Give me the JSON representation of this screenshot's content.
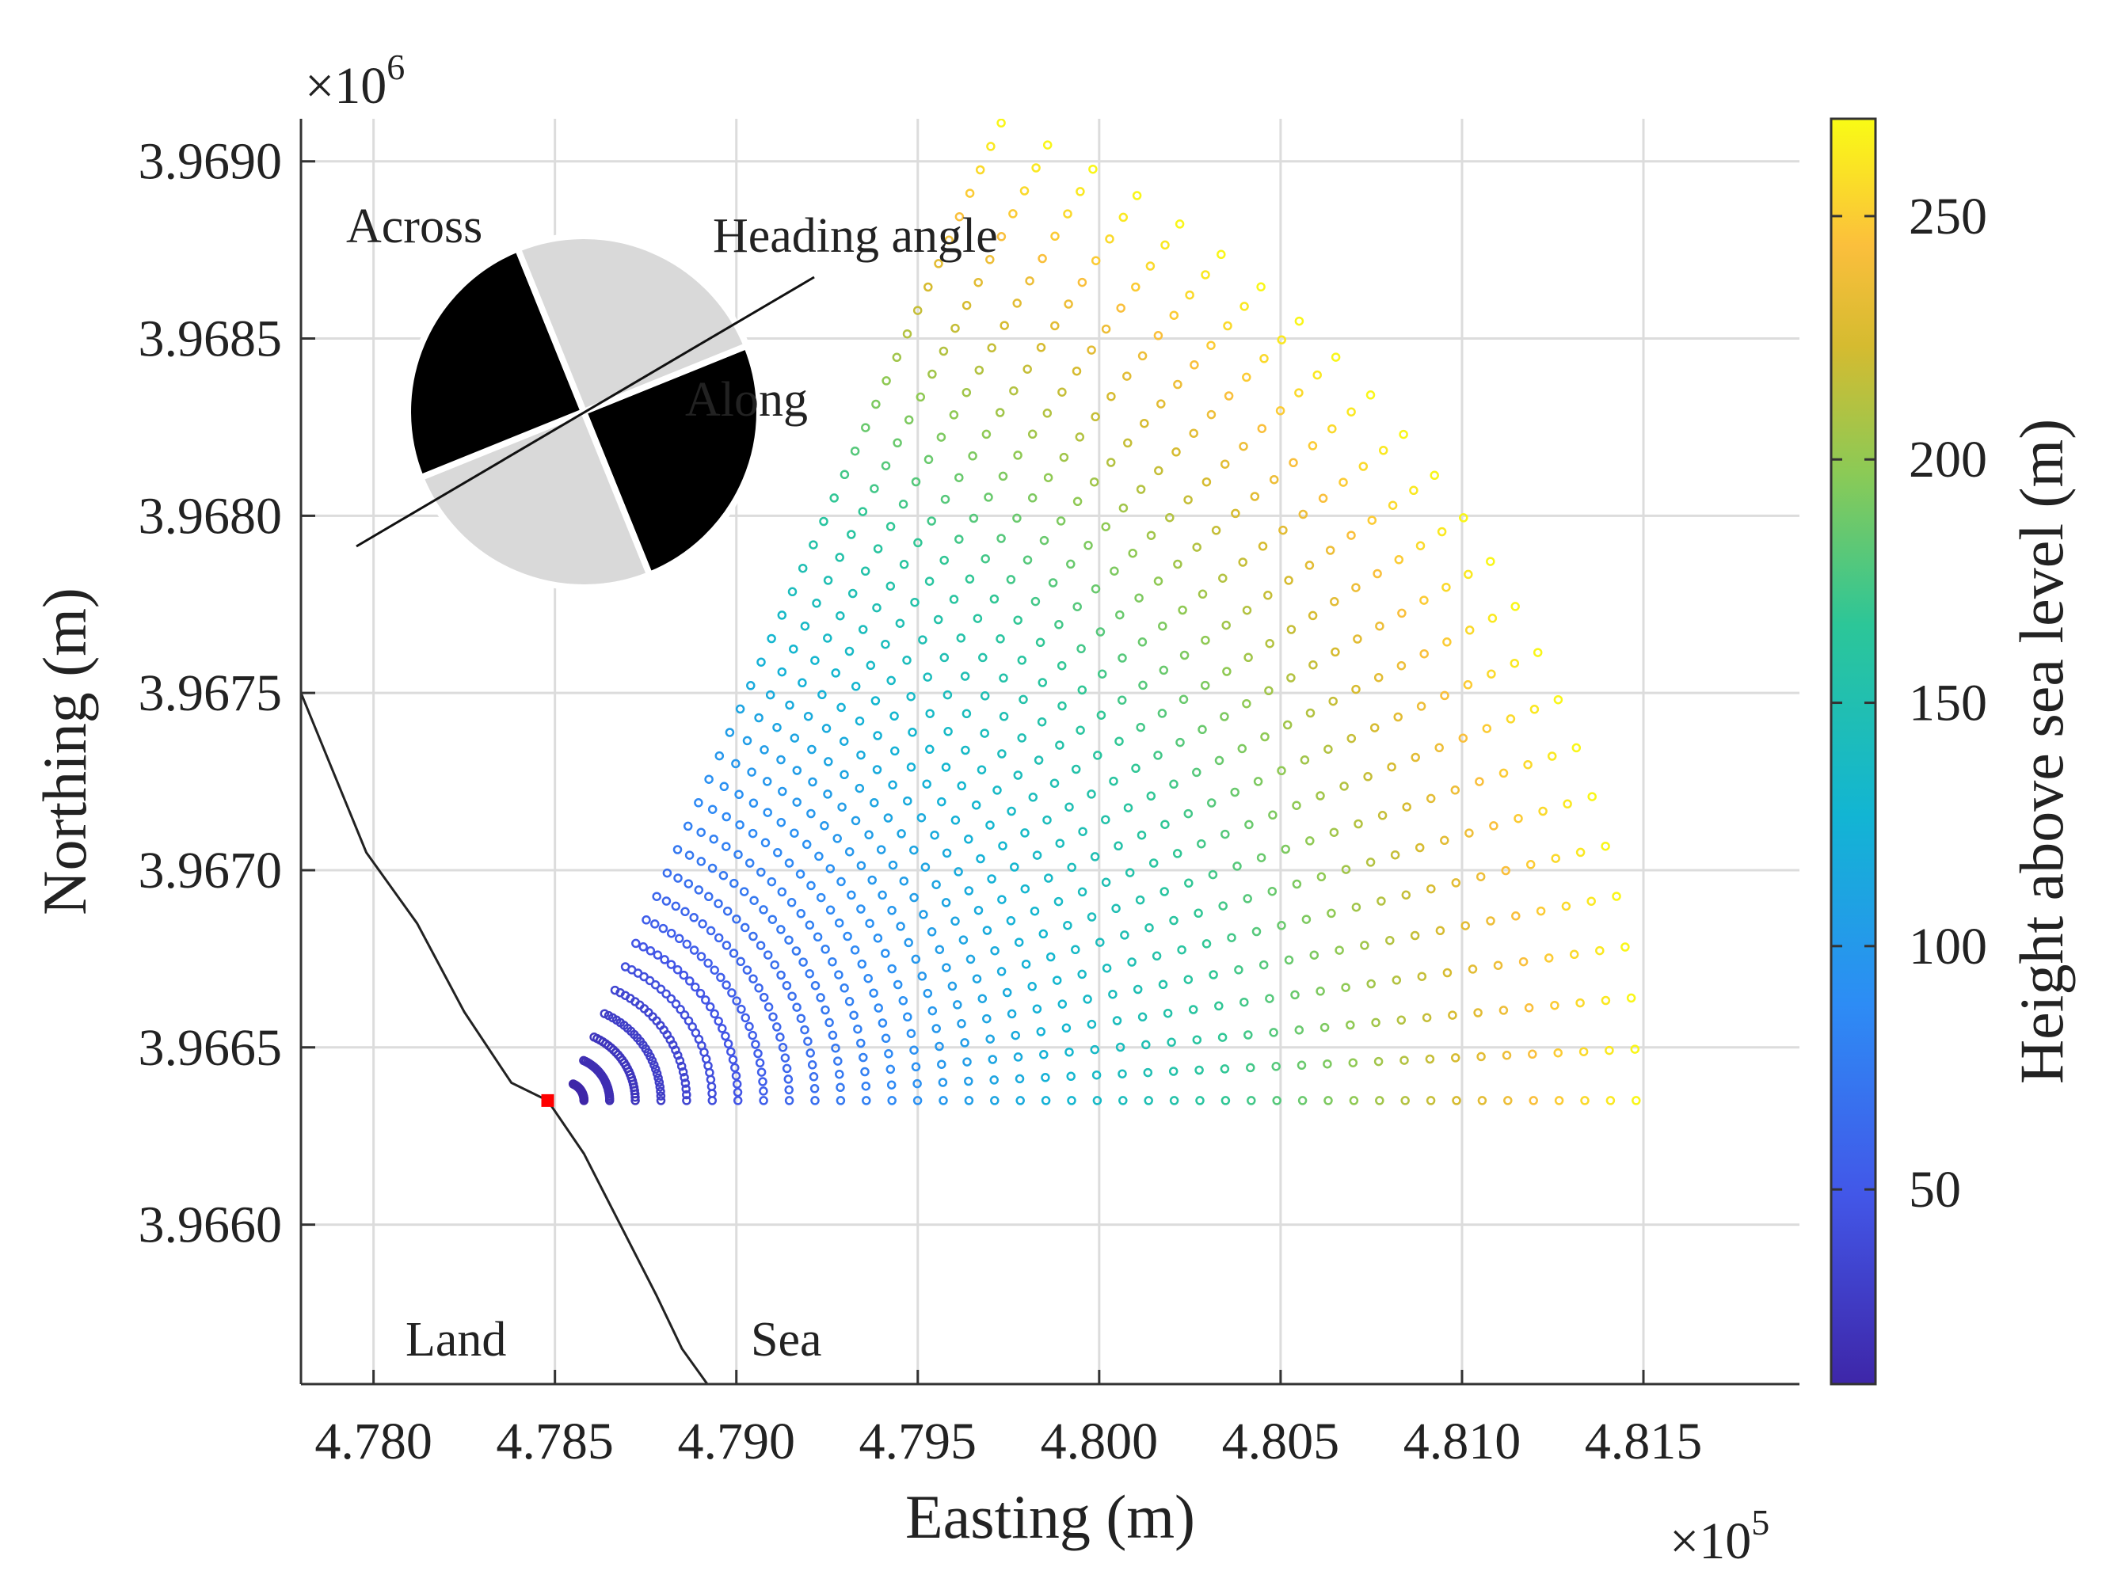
{
  "chart_data": {
    "type": "scatter",
    "title": "",
    "xlabel": "Easting (m)",
    "ylabel": "Northing (m)",
    "x_multiplier": "×10",
    "x_multiplier_exp": "5",
    "y_multiplier": "×10",
    "y_multiplier_exp": "6",
    "xlim": [
      4.778,
      4.8193
    ],
    "ylim": [
      3.96555,
      3.96912
    ],
    "xticks": [
      4.78,
      4.785,
      4.79,
      4.795,
      4.8,
      4.805,
      4.81,
      4.815
    ],
    "xtick_labels": [
      "4.780",
      "4.785",
      "4.790",
      "4.795",
      "4.800",
      "4.805",
      "4.810",
      "4.815"
    ],
    "yticks": [
      3.966,
      3.9665,
      3.967,
      3.9675,
      3.968,
      3.9685,
      3.969
    ],
    "ytick_labels": [
      "3.9660",
      "3.9665",
      "3.9670",
      "3.9675",
      "3.9680",
      "3.9685",
      "3.9690"
    ],
    "grid": true,
    "colorbar": {
      "label": "Height above sea level (m)",
      "range": [
        10,
        270
      ],
      "ticks": [
        50,
        100,
        150,
        200,
        250
      ],
      "tick_labels": [
        "50",
        "100",
        "150",
        "200",
        "250"
      ],
      "colormap": "parula"
    },
    "scan_fan": {
      "origin": [
        4.7853,
        3.96635
      ],
      "rays": 25,
      "angle_start_deg": 0,
      "angle_end_deg": 66,
      "inner_radius": 0.0005,
      "outer_radius": 0.0295,
      "points_per_ray": 42,
      "height_at_inner": 10,
      "height_at_outer": 268
    },
    "coastline": {
      "points": [
        [
          4.778,
          3.9675
        ],
        [
          4.7788,
          3.9673
        ],
        [
          4.7798,
          3.96705
        ],
        [
          4.7812,
          3.96685
        ],
        [
          4.7825,
          3.9666
        ],
        [
          4.7838,
          3.9664
        ],
        [
          4.7848,
          3.96635
        ],
        [
          4.7858,
          3.9662
        ],
        [
          4.7868,
          3.966
        ],
        [
          4.7878,
          3.9658
        ],
        [
          4.7885,
          3.96565
        ],
        [
          4.7892,
          3.96555
        ]
      ]
    },
    "lidar_location": {
      "x": 4.7848,
      "y": 3.96635,
      "color": "#ff0000"
    },
    "annotations": {
      "land": "Land",
      "sea": "Sea",
      "across": "Across",
      "along": "Along",
      "heading_angle": "Heading angle"
    },
    "colors": {
      "grid": "#dcdcdc",
      "axis": "#333333",
      "coastline": "#222222",
      "disk_dark": "#000000",
      "disk_light": "#d9d9d9"
    }
  }
}
